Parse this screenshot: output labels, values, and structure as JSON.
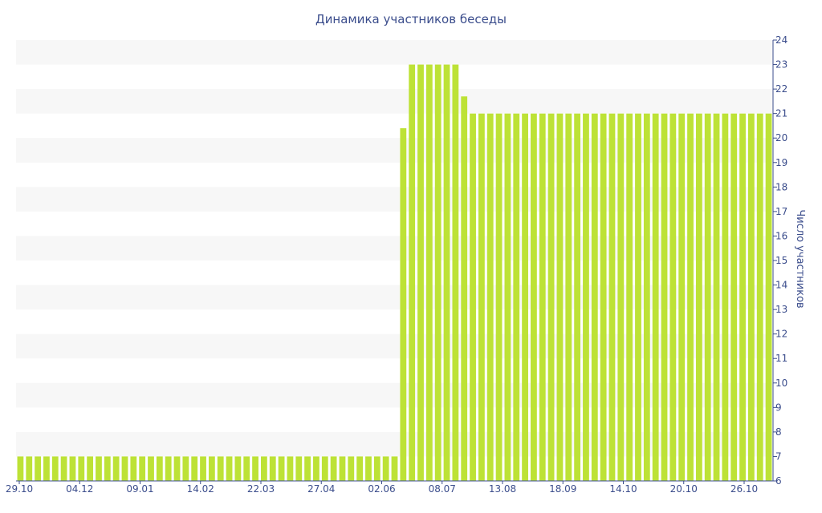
{
  "chart_data": {
    "type": "bar",
    "title": "Динамика участников беседы",
    "xlabel": "",
    "ylabel": "Число участников",
    "ylim": [
      6,
      24
    ],
    "yticks": [
      6,
      7,
      8,
      9,
      10,
      11,
      12,
      13,
      14,
      15,
      16,
      17,
      18,
      19,
      20,
      21,
      22,
      23,
      24
    ],
    "y_axis_side": "right",
    "grid": "alternating horizontal bands",
    "x_tick_labels": [
      "29.10",
      "04.12",
      "09.01",
      "14.02",
      "22.03",
      "27.04",
      "02.06",
      "08.07",
      "13.08",
      "18.09",
      "14.10",
      "20.10",
      "26.10"
    ],
    "values": [
      7,
      7,
      7,
      7,
      7,
      7,
      7,
      7,
      7,
      7,
      7,
      7,
      7,
      7,
      7,
      7,
      7,
      7,
      7,
      7,
      7,
      7,
      7,
      7,
      7,
      7,
      7,
      7,
      7,
      7,
      7,
      7,
      7,
      7,
      7,
      7,
      7,
      7,
      7,
      7,
      7,
      7,
      7,
      7,
      20.4,
      23,
      23,
      23,
      23,
      23,
      23,
      21.7,
      21,
      21,
      21,
      21,
      21,
      21,
      21,
      21,
      21,
      21,
      21,
      21,
      21,
      21,
      21,
      21,
      21,
      21,
      21,
      21,
      21,
      21,
      21,
      21,
      21,
      21,
      21,
      21,
      21,
      21,
      21,
      21,
      21,
      21,
      21
    ],
    "colors": {
      "bar": "#bde236",
      "band": "#f7f7f7",
      "text": "#3b4d8c",
      "axis": "#3b4d8c"
    }
  }
}
